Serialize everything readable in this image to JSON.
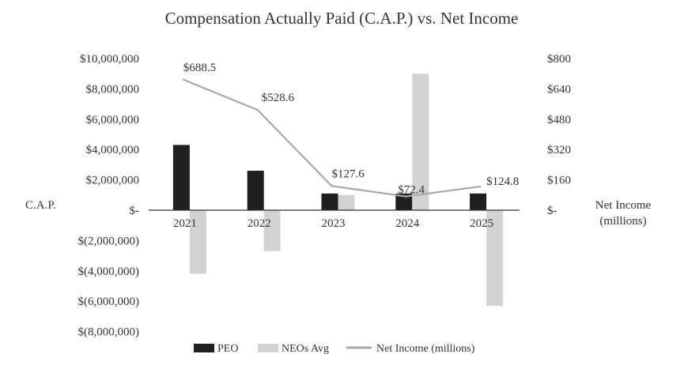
{
  "chart_data": {
    "type": "bar",
    "title": "Compensation Actually Paid (C.A.P.) vs. Net Income",
    "categories": [
      "2021",
      "2022",
      "2023",
      "2024",
      "2025"
    ],
    "series": [
      {
        "name": "PEO",
        "type": "bar",
        "axis": "left",
        "color": "#1f1f1f",
        "values": [
          4300000,
          2600000,
          1100000,
          1100000,
          1100000
        ]
      },
      {
        "name": "NEOs Avg",
        "type": "bar",
        "axis": "left",
        "color": "#d3d3d3",
        "values": [
          -4200000,
          -2700000,
          1000000,
          9000000,
          -6300000
        ]
      },
      {
        "name": "Net Income (millions)",
        "type": "line",
        "axis": "right",
        "color": "#a9a9a9",
        "values": [
          688.5,
          528.6,
          127.6,
          72.4,
          124.8
        ],
        "labels": [
          "$688.5",
          "$528.6",
          "$127.6",
          "$72.4",
          "$124.8"
        ]
      }
    ],
    "y_left": {
      "label": "C.A.P.",
      "ylim": [
        -8000000,
        10000000
      ],
      "ticks": [
        10000000,
        8000000,
        6000000,
        4000000,
        2000000,
        0,
        -2000000,
        -4000000,
        -6000000,
        -8000000
      ],
      "tick_labels": [
        "$10,000,000",
        "$8,000,000",
        "$6,000,000",
        "$4,000,000",
        "$2,000,000",
        "$-",
        "$(2,000,000)",
        "$(4,000,000)",
        "$(6,000,000)",
        "$(8,000,000)"
      ]
    },
    "y_right": {
      "label_lines": [
        "Net Income",
        "(millions)"
      ],
      "ylim": [
        0,
        800
      ],
      "ticks": [
        800,
        640,
        480,
        320,
        160,
        0
      ],
      "tick_labels": [
        "$800",
        "$640",
        "$480",
        "$320",
        "$160",
        "$-"
      ]
    },
    "grid": false,
    "legend": {
      "position": "bottom",
      "items": [
        "PEO",
        "NEOs Avg",
        "Net Income (millions)"
      ]
    }
  }
}
